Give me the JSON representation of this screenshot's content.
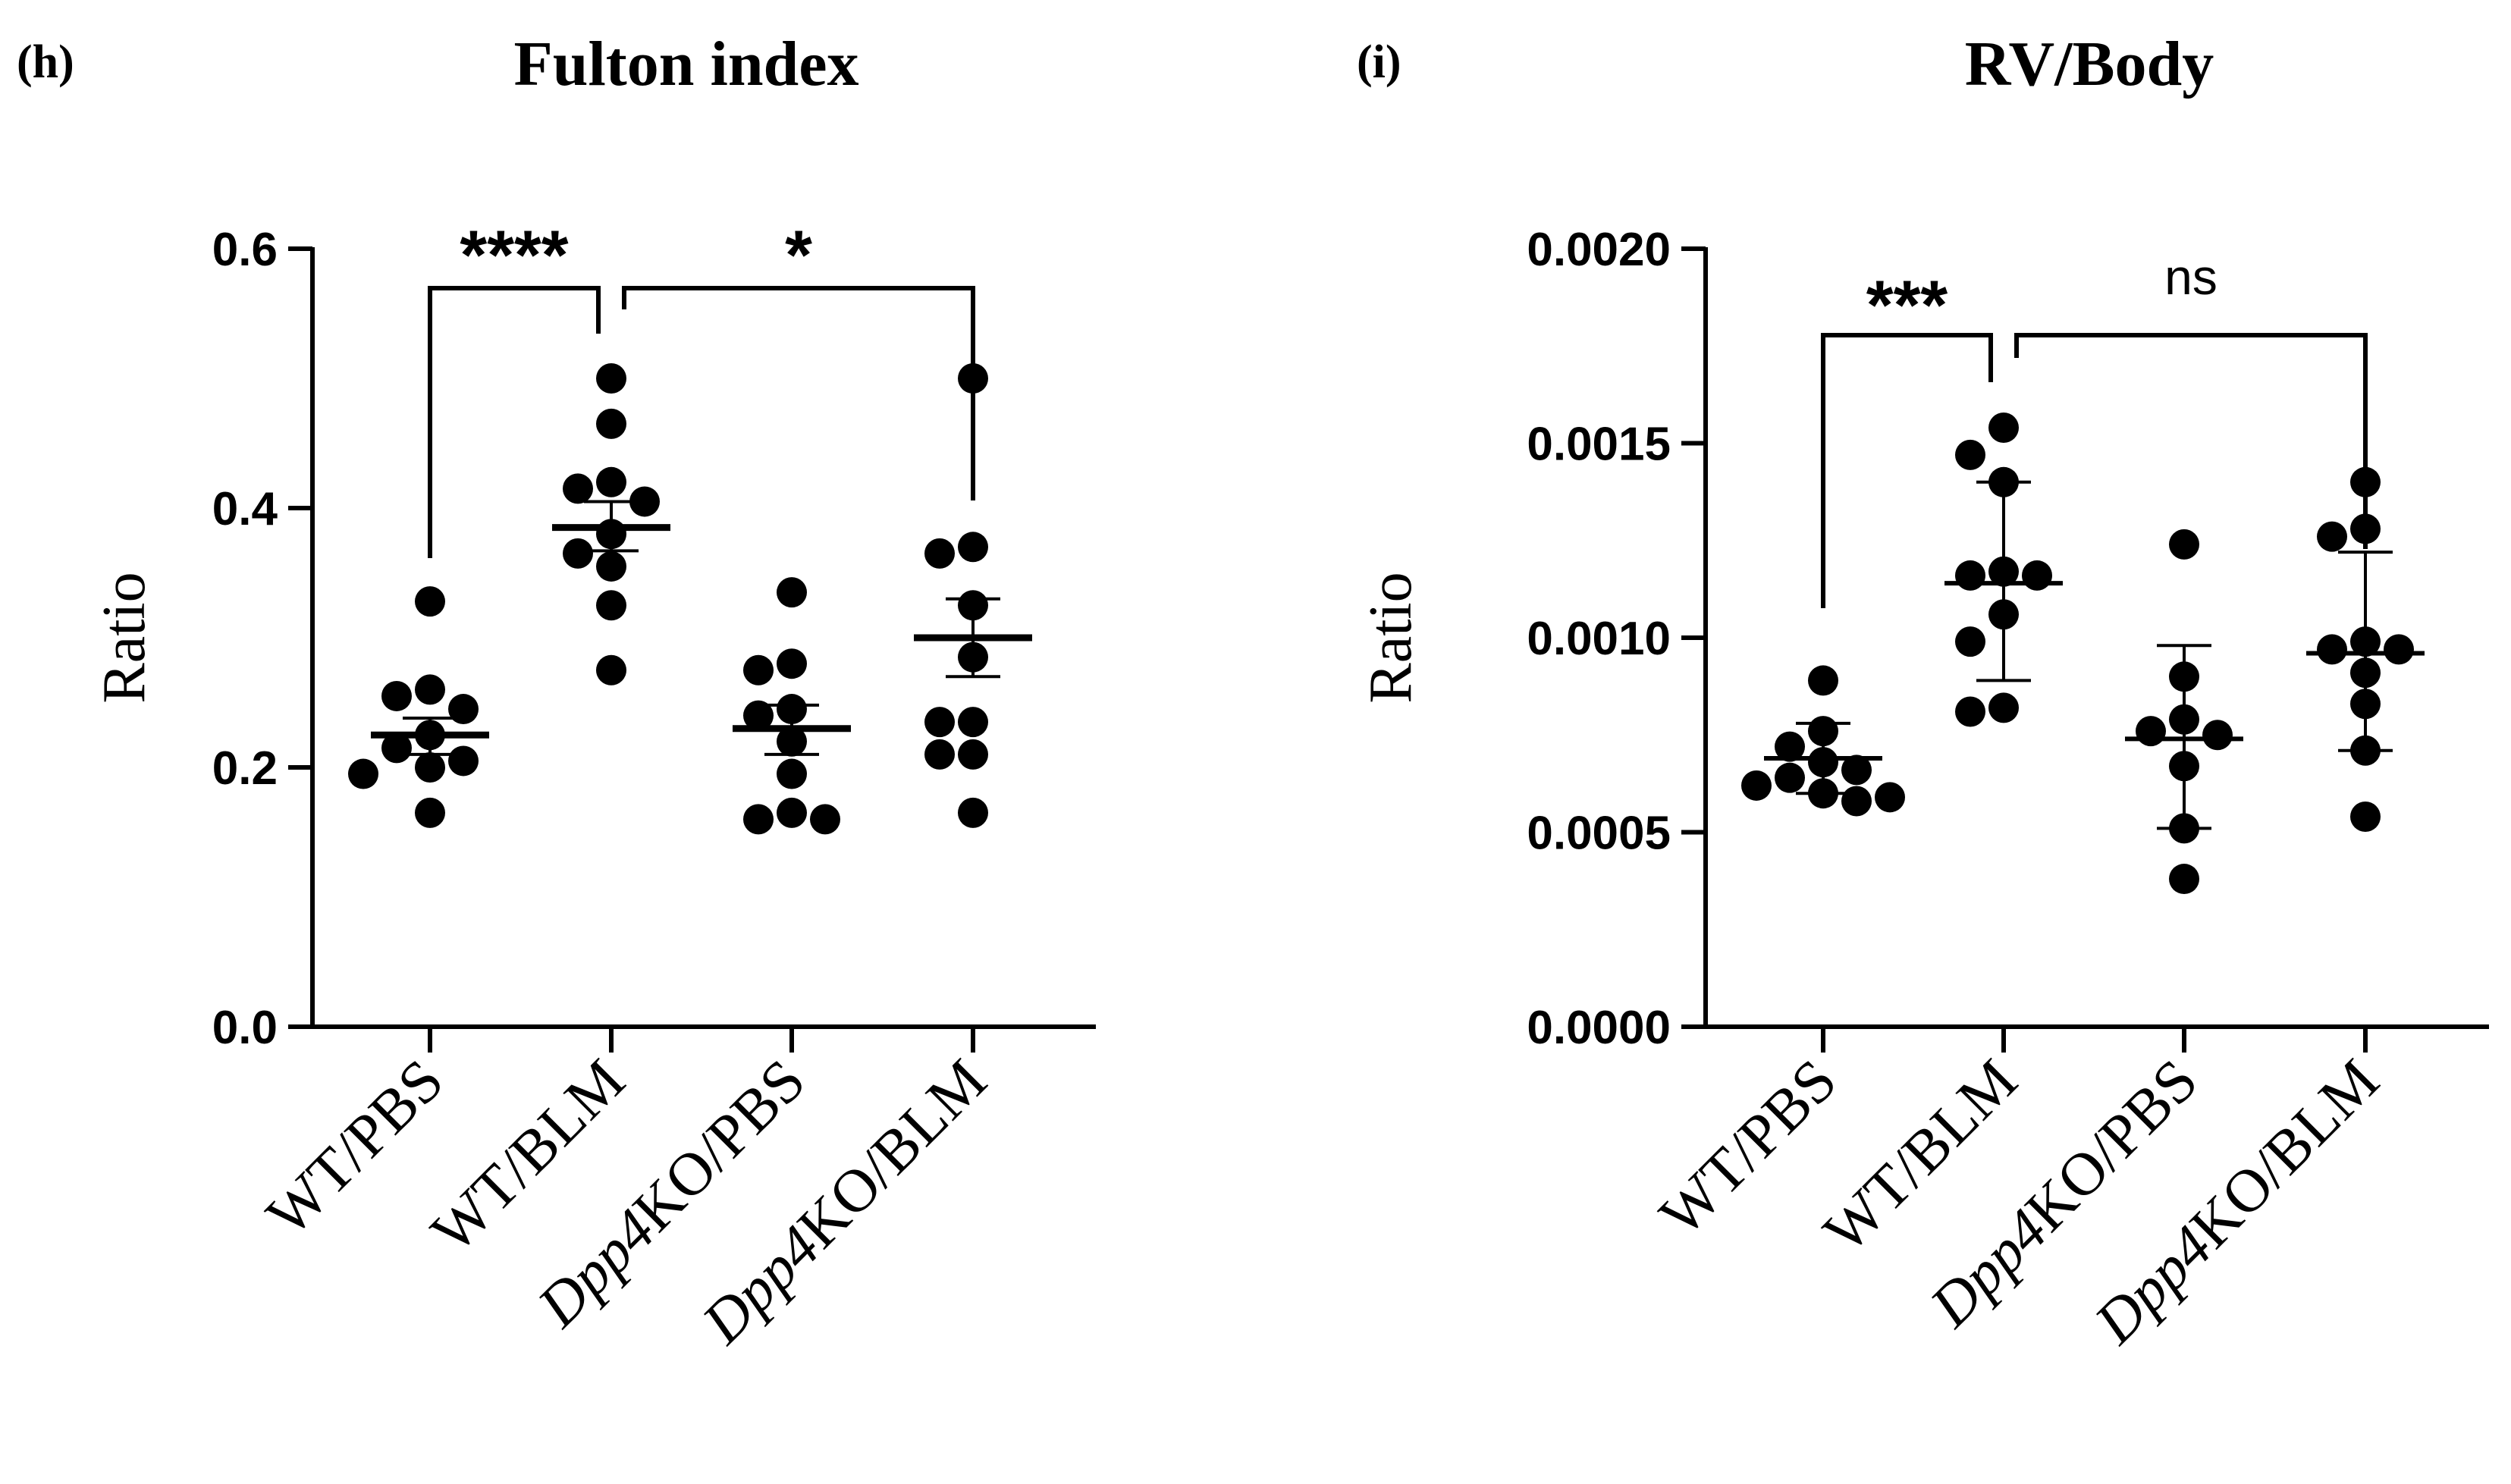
{
  "chart_data": [
    {
      "type": "scatter",
      "panel": "(h)",
      "title": "Fulton index",
      "ylabel": "Ratio",
      "ylim": [
        0,
        0.6
      ],
      "yticks": [
        "0.0",
        "0.2",
        "0.4",
        "0.6"
      ],
      "categories": [
        {
          "prefix": "WT/",
          "label": "PBS"
        },
        {
          "prefix": "WT/",
          "label": "BLM"
        },
        {
          "prefix": "Dpp4",
          "label": "KO/PBS"
        },
        {
          "prefix": "Dpp4",
          "label": "KO/BLM"
        }
      ],
      "category_names": [
        "WT/PBS",
        "WT/BLM",
        "Dpp4KO/PBS",
        "Dpp4KO/BLM"
      ],
      "points": [
        [
          0.328,
          0.26,
          0.255,
          0.245,
          0.225,
          0.215,
          0.205,
          0.2,
          0.195,
          0.165
        ],
        [
          0.5,
          0.465,
          0.42,
          0.415,
          0.405,
          0.38,
          0.365,
          0.355,
          0.325,
          0.275
        ],
        [
          0.335,
          0.28,
          0.275,
          0.245,
          0.24,
          0.22,
          0.195,
          0.165,
          0.16,
          0.16
        ],
        [
          0.5,
          0.37,
          0.365,
          0.325,
          0.285,
          0.235,
          0.235,
          0.21,
          0.21,
          0.165
        ]
      ],
      "mean": [
        0.225,
        0.385,
        0.23,
        0.3
      ],
      "error_upper": [
        0.238,
        0.405,
        0.248,
        0.33
      ],
      "error_lower": [
        0.21,
        0.367,
        0.21,
        0.27
      ],
      "mean_bar_bold": true,
      "comparisons": [
        {
          "from": 0,
          "to": 1,
          "label": "****"
        },
        {
          "from": 1,
          "to": 3,
          "label": "*"
        }
      ]
    },
    {
      "type": "scatter",
      "panel": "(i)",
      "title": "RV/Body",
      "ylabel": "Ratio",
      "ylim": [
        0,
        0.002
      ],
      "yticks": [
        "0.0000",
        "0.0005",
        "0.0010",
        "0.0015",
        "0.0020"
      ],
      "categories": [
        {
          "prefix": "WT/",
          "label": "PBS"
        },
        {
          "prefix": "WT/",
          "label": "BLM"
        },
        {
          "prefix": "Dpp4",
          "label": "KO/PBS"
        },
        {
          "prefix": "Dpp4",
          "label": "KO/BLM"
        }
      ],
      "category_names": [
        "WT/PBS",
        "WT/BLM",
        "Dpp4KO/PBS",
        "Dpp4KO/BLM"
      ],
      "points": [
        [
          0.00089,
          0.00076,
          0.00072,
          0.00068,
          0.00066,
          0.00064,
          0.00062,
          0.0006,
          0.00059,
          0.00058
        ],
        [
          0.00154,
          0.00147,
          0.0014,
          0.00117,
          0.00116,
          0.00116,
          0.00106,
          0.00099,
          0.00082,
          0.00081
        ],
        [
          0.00124,
          0.0009,
          0.00079,
          0.00076,
          0.00075,
          0.00067,
          0.00051,
          0.00038
        ],
        [
          0.0014,
          0.00128,
          0.00126,
          0.00099,
          0.00097,
          0.00097,
          0.00091,
          0.00083,
          0.00071,
          0.00054
        ]
      ],
      "mean": [
        0.00069,
        0.00114,
        0.00074,
        0.00096
      ],
      "error_upper": [
        0.00078,
        0.0014,
        0.00098,
        0.00122
      ],
      "error_lower": [
        0.0006,
        0.00089,
        0.00051,
        0.00071
      ],
      "mean_bar_bold": false,
      "comparisons": [
        {
          "from": 0,
          "to": 1,
          "label": "***"
        },
        {
          "from": 1,
          "to": 3,
          "label": "ns"
        }
      ]
    }
  ]
}
